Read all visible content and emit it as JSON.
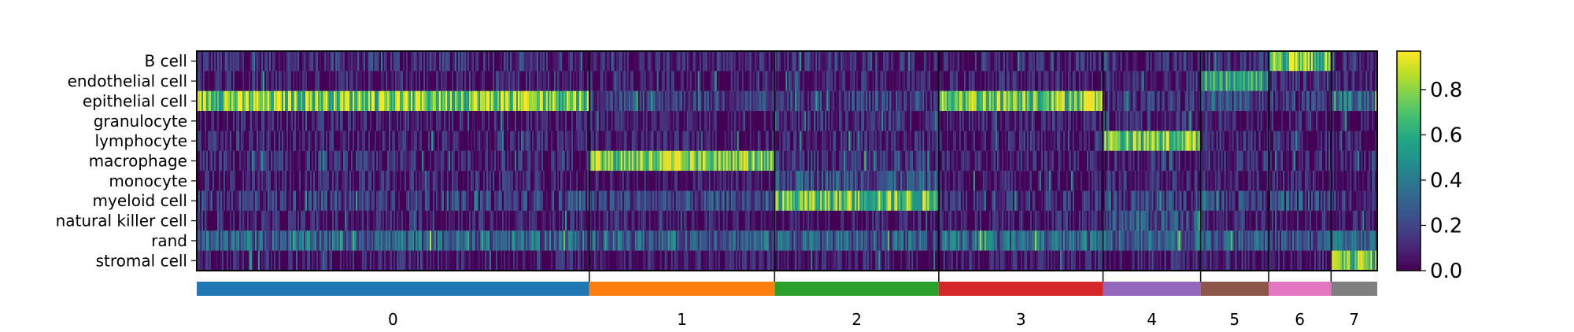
{
  "chart_data": {
    "type": "heatmap",
    "title": "",
    "xlabel": "",
    "ylabel": "",
    "rows": [
      "B cell",
      "endothelial cell",
      "epithelial cell",
      "granulocyte",
      "lymphocyte",
      "macrophage",
      "monocyte",
      "myeloid cell",
      "natural killer cell",
      "rand",
      "stromal cell"
    ],
    "groups": [
      {
        "label": "0",
        "color": "#1f77b4",
        "fraction": 0.3325
      },
      {
        "label": "1",
        "color": "#ff7f0e",
        "fraction": 0.157
      },
      {
        "label": "2",
        "color": "#2ca02c",
        "fraction": 0.1391
      },
      {
        "label": "3",
        "color": "#d62728",
        "fraction": 0.1391
      },
      {
        "label": "4",
        "color": "#9467bd",
        "fraction": 0.0827
      },
      {
        "label": "5",
        "color": "#8c564b",
        "fraction": 0.0576
      },
      {
        "label": "6",
        "color": "#e377c2",
        "fraction": 0.0529
      },
      {
        "label": "7",
        "color": "#7f7f7f",
        "fraction": 0.0391
      }
    ],
    "mean_values": [
      [
        0.1,
        0.08,
        0.1,
        0.08,
        0.08,
        0.1,
        0.72,
        0.1
      ],
      [
        0.05,
        0.05,
        0.06,
        0.06,
        0.08,
        0.6,
        0.1,
        0.1
      ],
      [
        0.78,
        0.2,
        0.18,
        0.78,
        0.12,
        0.25,
        0.15,
        0.35
      ],
      [
        0.05,
        0.05,
        0.1,
        0.06,
        0.1,
        0.06,
        0.05,
        0.05
      ],
      [
        0.06,
        0.06,
        0.08,
        0.06,
        0.75,
        0.1,
        0.08,
        0.06
      ],
      [
        0.08,
        0.78,
        0.12,
        0.08,
        0.08,
        0.12,
        0.08,
        0.06
      ],
      [
        0.05,
        0.05,
        0.25,
        0.05,
        0.08,
        0.06,
        0.05,
        0.05
      ],
      [
        0.15,
        0.2,
        0.72,
        0.12,
        0.15,
        0.18,
        0.2,
        0.15
      ],
      [
        0.05,
        0.05,
        0.06,
        0.05,
        0.25,
        0.08,
        0.05,
        0.05
      ],
      [
        0.3,
        0.3,
        0.28,
        0.32,
        0.3,
        0.28,
        0.25,
        0.3
      ],
      [
        0.05,
        0.05,
        0.06,
        0.05,
        0.06,
        0.08,
        0.06,
        0.75
      ]
    ],
    "colorbar": {
      "colormap": "viridis",
      "range": [
        0.0,
        0.97
      ],
      "ticks": [
        0.0,
        0.2,
        0.4,
        0.6,
        0.8
      ],
      "tick_labels": [
        "0.0",
        "0.2",
        "0.4",
        "0.6",
        "0.8"
      ]
    }
  }
}
